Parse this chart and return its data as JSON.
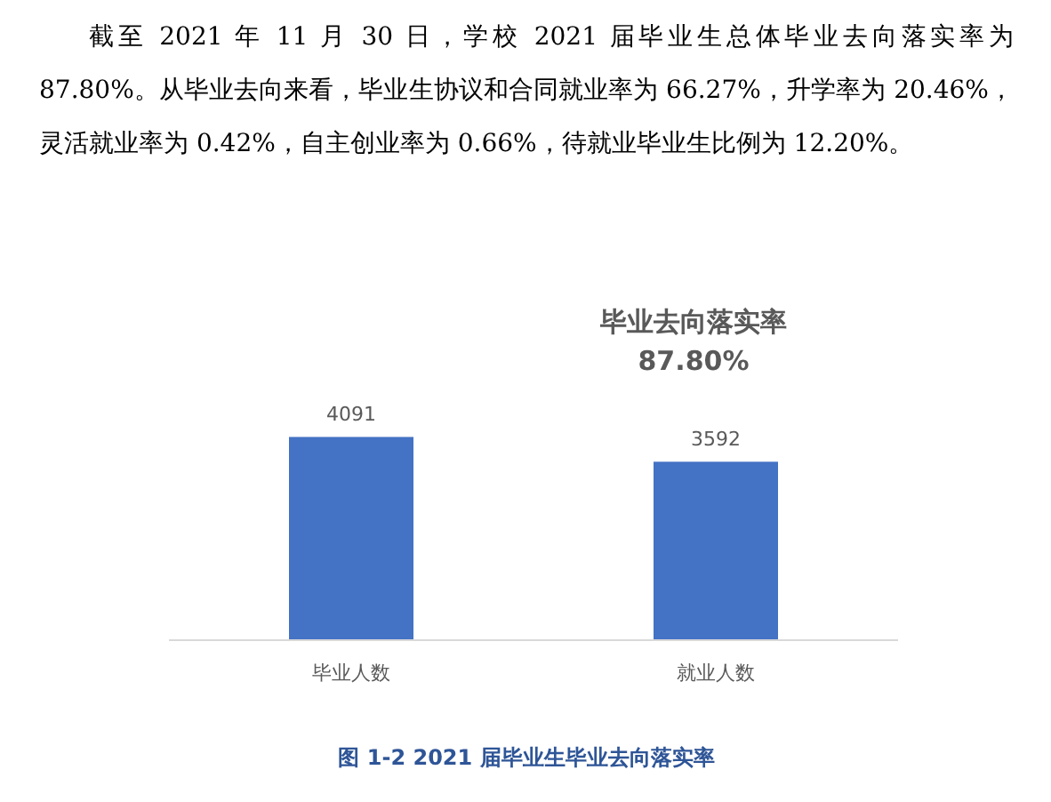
{
  "chart_data": {
    "type": "bar",
    "title": "毕业去向落实率",
    "subtitle": "87.80%",
    "categories": [
      "毕业人数",
      "就业人数"
    ],
    "values": [
      4091,
      3592
    ],
    "color": "#4472c4",
    "tick_labels": "x",
    "data_labels": true,
    "annotations": [
      "截至 2021 年 11 月 30 日，学校 2021 届毕业生总体毕业去向落实率为 87.80%。从毕业去向来看，毕业生协议和合同就业率为 66.27%，升学率为 20.46%，灵活就业率为 0.42%，自主创业率为 0.66%，待就业毕业生比例为 12.20%。",
      "图 1-2 2021 届毕业生毕业去向落实率"
    ]
  }
}
